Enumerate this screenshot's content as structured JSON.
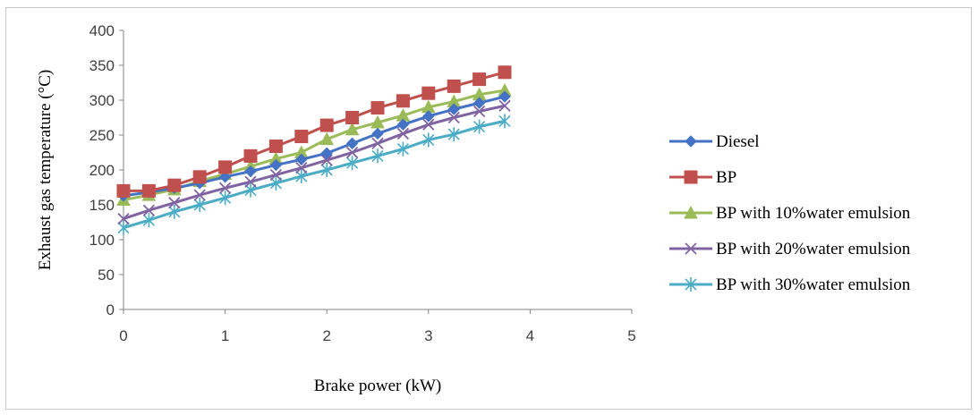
{
  "chart_data": {
    "type": "line",
    "title": "",
    "xlabel": "Brake power (kW)",
    "ylabel": "Exhaust gas temperature (°C)",
    "xlim": [
      0,
      5
    ],
    "ylim": [
      0,
      400
    ],
    "x_ticks": [
      "0",
      "1",
      "2",
      "3",
      "4",
      "5"
    ],
    "y_ticks": [
      "0",
      "50",
      "100",
      "150",
      "200",
      "250",
      "300",
      "350",
      "400"
    ],
    "grid": false,
    "legend_position": "right",
    "x": [
      0,
      0.25,
      0.5,
      0.75,
      1.0,
      1.25,
      1.5,
      1.75,
      2.0,
      2.25,
      2.5,
      2.75,
      3.0,
      3.25,
      3.5,
      3.75
    ],
    "series": [
      {
        "name": "Diesel",
        "color": "#4472C4",
        "marker": "diamond",
        "values": [
          163,
          168,
          174,
          181,
          190,
          198,
          207,
          215,
          224,
          238,
          252,
          265,
          277,
          287,
          296,
          305
        ]
      },
      {
        "name": "BP",
        "color": "#C0504D",
        "marker": "square",
        "values": [
          170,
          170,
          178,
          190,
          204,
          220,
          234,
          248,
          264,
          275,
          289,
          299,
          310,
          320,
          330,
          340
        ]
      },
      {
        "name": "BP with 10%water emulsion",
        "color": "#9BBB59",
        "marker": "triangle",
        "values": [
          157,
          164,
          172,
          184,
          194,
          205,
          216,
          225,
          244,
          258,
          268,
          278,
          290,
          298,
          308,
          314
        ]
      },
      {
        "name": "BP with 20%water emulsion",
        "color": "#8064A2",
        "marker": "x",
        "values": [
          130,
          142,
          153,
          164,
          174,
          183,
          193,
          203,
          214,
          225,
          238,
          252,
          265,
          275,
          284,
          292
        ]
      },
      {
        "name": "BP with 30%water emulsion",
        "color": "#4BACC6",
        "marker": "star",
        "values": [
          117,
          128,
          140,
          150,
          160,
          171,
          181,
          191,
          200,
          210,
          220,
          230,
          243,
          251,
          262,
          270
        ]
      }
    ]
  }
}
